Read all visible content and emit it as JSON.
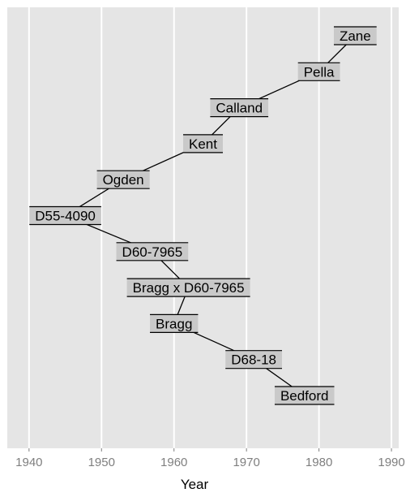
{
  "chart_data": {
    "type": "diagram",
    "title": "",
    "xlabel": "Year",
    "ylabel": "",
    "xlim": [
      1937,
      1991
    ],
    "x_ticks": [
      1940,
      1950,
      1960,
      1970,
      1980,
      1990
    ],
    "x_tick_labels": [
      "1940",
      "1950",
      "1960",
      "1970",
      "1980",
      "1990"
    ],
    "grid": true,
    "colors": {
      "panel_bg": "#e5e5e5",
      "grid": "#ffffff",
      "label_bg": "#c9c9c9",
      "line": "#000000",
      "tick_text": "#7f7f7f"
    },
    "nodes": [
      {
        "id": "zane",
        "label": "Zane",
        "year": 1985,
        "rank": 1
      },
      {
        "id": "pella",
        "label": "Pella",
        "year": 1980,
        "rank": 2
      },
      {
        "id": "calland",
        "label": "Calland",
        "year": 1969,
        "rank": 3
      },
      {
        "id": "kent",
        "label": "Kent",
        "year": 1964,
        "rank": 4
      },
      {
        "id": "ogden",
        "label": "Ogden",
        "year": 1953,
        "rank": 5
      },
      {
        "id": "d55-4090",
        "label": "D55-4090",
        "year": 1945,
        "rank": 6
      },
      {
        "id": "d60-7965",
        "label": "D60-7965",
        "year": 1957,
        "rank": 7
      },
      {
        "id": "bragg-x-d60-7965",
        "label": "Bragg x D60-7965",
        "year": 1962,
        "rank": 8
      },
      {
        "id": "bragg",
        "label": "Bragg",
        "year": 1960,
        "rank": 9
      },
      {
        "id": "d68-18",
        "label": "D68-18",
        "year": 1971,
        "rank": 10
      },
      {
        "id": "bedford",
        "label": "Bedford",
        "year": 1978,
        "rank": 11
      }
    ],
    "edges": [
      [
        "zane",
        "pella"
      ],
      [
        "pella",
        "calland"
      ],
      [
        "calland",
        "kent"
      ],
      [
        "kent",
        "ogden"
      ],
      [
        "ogden",
        "d55-4090"
      ],
      [
        "d55-4090",
        "d60-7965"
      ],
      [
        "d60-7965",
        "bragg-x-d60-7965"
      ],
      [
        "bragg-x-d60-7965",
        "bragg"
      ],
      [
        "bragg",
        "d68-18"
      ],
      [
        "d68-18",
        "bedford"
      ]
    ]
  }
}
